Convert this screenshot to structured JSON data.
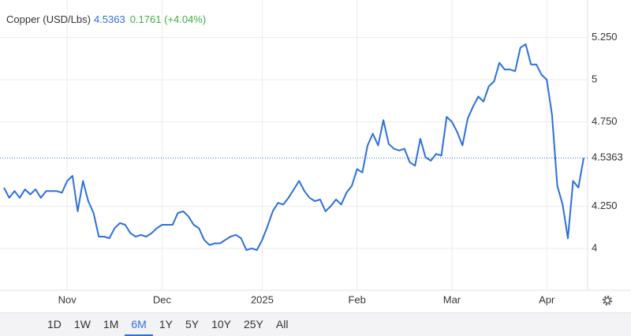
{
  "chart_data": {
    "type": "line",
    "title": "Copper (USD/Lbs)",
    "change": "0.1761 (+4.04%)",
    "color": "#2c6fdc",
    "categories": [
      null,
      null,
      null,
      null,
      null,
      null,
      null,
      null,
      null,
      null,
      null,
      null,
      "Nov",
      null,
      null,
      null,
      null,
      null,
      null,
      null,
      null,
      null,
      null,
      null,
      null,
      null,
      null,
      null,
      null,
      null,
      "Dec",
      null,
      null,
      null,
      null,
      null,
      null,
      null,
      null,
      null,
      null,
      null,
      null,
      null,
      null,
      null,
      null,
      null,
      null,
      "2025",
      null,
      null,
      null,
      null,
      null,
      null,
      null,
      null,
      null,
      null,
      null,
      null,
      null,
      null,
      null,
      null,
      null,
      "Feb",
      null,
      null,
      null,
      null,
      null,
      null,
      null,
      null,
      null,
      null,
      null,
      null,
      null,
      null,
      null,
      null,
      null,
      "Mar",
      null,
      null,
      null,
      null,
      null,
      null,
      null,
      null,
      null,
      null,
      null,
      null,
      null,
      null,
      null,
      null,
      null,
      "Apr",
      null,
      null,
      null,
      null,
      null,
      null,
      null
    ],
    "values": [
      4.36,
      4.3,
      4.34,
      4.3,
      4.35,
      4.32,
      4.35,
      4.3,
      4.34,
      4.34,
      4.34,
      4.33,
      4.4,
      4.43,
      4.22,
      4.4,
      4.28,
      4.21,
      4.07,
      4.07,
      4.06,
      4.12,
      4.15,
      4.14,
      4.09,
      4.07,
      4.08,
      4.07,
      4.09,
      4.12,
      4.14,
      4.14,
      4.14,
      4.21,
      4.22,
      4.19,
      4.14,
      4.12,
      4.05,
      4.02,
      4.03,
      4.03,
      4.05,
      4.07,
      4.08,
      4.06,
      3.99,
      4.0,
      3.99,
      4.05,
      4.13,
      4.22,
      4.27,
      4.26,
      4.3,
      4.35,
      4.4,
      4.34,
      4.3,
      4.28,
      4.29,
      4.22,
      4.25,
      4.29,
      4.26,
      4.33,
      4.37,
      4.47,
      4.45,
      4.61,
      4.68,
      4.61,
      4.76,
      4.62,
      4.59,
      4.58,
      4.59,
      4.51,
      4.49,
      4.65,
      4.54,
      4.52,
      4.56,
      4.55,
      4.78,
      4.75,
      4.69,
      4.61,
      4.77,
      4.84,
      4.9,
      4.87,
      4.96,
      4.99,
      5.1,
      5.06,
      5.06,
      5.05,
      5.19,
      5.21,
      5.09,
      5.09,
      5.03,
      5.0,
      4.79,
      4.37,
      4.26,
      4.06,
      4.4,
      4.36,
      4.5363
    ],
    "ylim": [
      3.752,
      5.472
    ],
    "yticks": [
      4,
      {
        "value": 4.25,
        "label": "4.250"
      },
      {
        "value": 4.75,
        "label": "4.750"
      },
      5,
      {
        "value": 5.25,
        "label": "5.250"
      }
    ],
    "grid": true,
    "ranges": [
      "1D",
      "1W",
      "1M",
      "6M",
      "1Y",
      "5Y",
      "10Y",
      "25Y",
      "All"
    ],
    "selected_range": 3
  }
}
